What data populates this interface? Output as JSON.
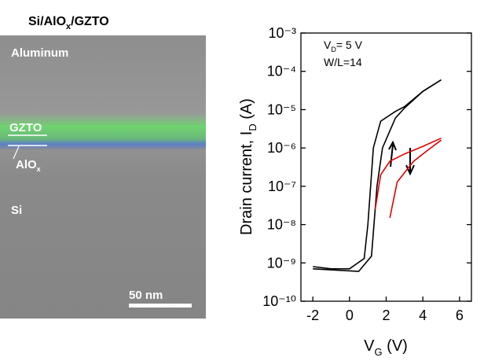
{
  "image": {
    "title": [
      "Si/AlO",
      "x",
      "/GZTO"
    ],
    "labels": [
      "Aluminum",
      "GZTO",
      "Si"
    ],
    "alox": [
      "AlO",
      "x"
    ],
    "scale": "50 nm"
  },
  "chart_data": {
    "type": "line",
    "annotations": [
      [
        "V",
        "D",
        "= 5 V"
      ],
      "W/L=14"
    ],
    "ylabel": [
      "Drain current, I",
      "D",
      " (A)"
    ],
    "xlabel": [
      "V",
      "G",
      " (V)"
    ],
    "log_y": true,
    "xlim": [
      -2.65,
      6.65
    ],
    "xticks": [
      -2,
      0,
      2,
      4,
      6
    ],
    "ylim": [
      1e-10,
      0.001
    ],
    "yticks": [
      {
        "value": 1e-10,
        "label": "10⁻¹⁰"
      },
      {
        "value": 1e-09,
        "label": "10⁻⁹"
      },
      {
        "value": 1e-08,
        "label": "10⁻⁸"
      },
      {
        "value": 1e-07,
        "label": "10⁻⁷"
      },
      {
        "value": 1e-06,
        "label": "10⁻⁶"
      },
      {
        "value": 1e-05,
        "label": "10⁻⁵"
      },
      {
        "value": 0.0001,
        "label": "10⁻⁴"
      },
      {
        "value": 0.001,
        "label": "10⁻³"
      }
    ],
    "series": [
      {
        "color": "#000000",
        "x": [
          -2,
          -1,
          0,
          0.8,
          1.0,
          1.3,
          1.7,
          2.5,
          3,
          4,
          5
        ],
        "values": [
          8e-10,
          7e-10,
          7e-10,
          1.3e-09,
          1e-08,
          1e-06,
          5e-06,
          9e-06,
          1.2e-05,
          3e-05,
          6e-05
        ]
      },
      {
        "color": "#000000",
        "x": [
          -2,
          0.5,
          1.2,
          1.5,
          1.8,
          2.5,
          3,
          4,
          5
        ],
        "values": [
          7e-10,
          6e-10,
          1.5e-09,
          1e-07,
          1e-06,
          6e-06,
          1.1e-05,
          3e-05,
          6e-05
        ]
      },
      {
        "color": "#e00000",
        "x": [
          1.4,
          1.7,
          2.2,
          3,
          4,
          5
        ],
        "values": [
          2.5e-08,
          2e-07,
          4.5e-07,
          7e-07,
          1.1e-06,
          1.8e-06
        ]
      },
      {
        "color": "#e00000",
        "x": [
          2.2,
          2.6,
          3.5,
          4.3,
          5
        ],
        "values": [
          1.5e-08,
          1.3e-07,
          4.5e-07,
          9e-07,
          1.6e-06
        ]
      }
    ]
  }
}
